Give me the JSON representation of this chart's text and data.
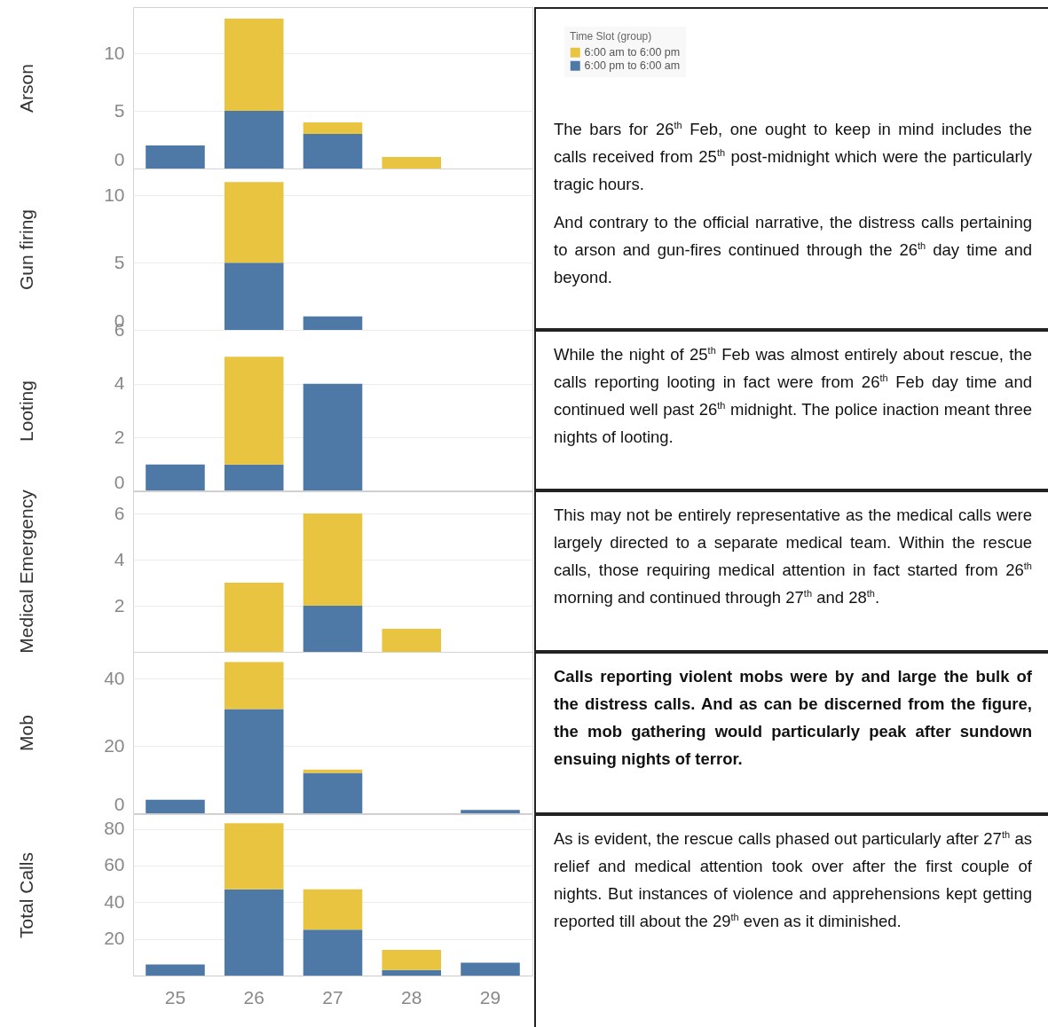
{
  "chart_data": [
    {
      "type": "bar",
      "ylabel": "Arson",
      "categories": [
        "25",
        "26",
        "27",
        "28",
        "29"
      ],
      "stacked": true,
      "ylim": [
        0,
        14
      ],
      "yticks": [
        0,
        5,
        10
      ],
      "grid": "y",
      "tick_labels": "y",
      "legend": "right",
      "legend_title": "Time Slot (group)",
      "series": [
        {
          "name": "6:00 pm to 6:00 am",
          "color": "#4e79a7",
          "values": [
            2,
            5,
            3,
            0,
            0
          ]
        },
        {
          "name": "6:00 am to 6:00 pm",
          "color": "#e8c440",
          "values": [
            0,
            8,
            1,
            1,
            0
          ]
        }
      ],
      "annotations": [
        "The bars for 26$^{th}$ Feb, one ought to keep in mind includes the calls received from 25$^{th}$ post-midnight which were the particularly tragic hours.",
        "And contrary to the official narrative, the distress calls pertaining to arson and gun-fires continued through the 26$^{th}$ day time and beyond."
      ]
    },
    {
      "type": "bar",
      "ylabel": "Gun firing",
      "categories": [
        "25",
        "26",
        "27",
        "28",
        "29"
      ],
      "stacked": true,
      "ylim": [
        0,
        12
      ],
      "yticks": [
        0,
        5,
        10
      ],
      "grid": "y",
      "tick_labels": "y",
      "series": [
        {
          "color": "#4e79a7",
          "values": [
            0,
            5,
            1,
            0,
            0
          ]
        },
        {
          "color": "#e8c440",
          "values": [
            0,
            6,
            0,
            0,
            0
          ]
        }
      ]
    },
    {
      "type": "bar",
      "ylabel": "Looting",
      "categories": [
        "25",
        "26",
        "27",
        "28",
        "29"
      ],
      "stacked": true,
      "ylim": [
        0,
        6
      ],
      "yticks": [
        0,
        2,
        4,
        6
      ],
      "grid": "y",
      "tick_labels": "y",
      "series": [
        {
          "color": "#4e79a7",
          "values": [
            1,
            1,
            4,
            0,
            0
          ]
        },
        {
          "color": "#e8c440",
          "values": [
            0,
            4,
            0,
            0,
            0
          ]
        }
      ],
      "annotations": [
        "While the night of 25$^{th}$ Feb was almost entirely about rescue, the calls reporting looting in fact were from 26$^{th}$ Feb day time and continued well past 26$^{th}$ midnight. The police inaction meant three nights of looting."
      ]
    },
    {
      "type": "bar",
      "ylabel": "Medical Emergency",
      "categories": [
        "25",
        "26",
        "27",
        "28",
        "29"
      ],
      "stacked": true,
      "ylim": [
        0,
        7
      ],
      "yticks": [
        2,
        4,
        6
      ],
      "grid": "y",
      "tick_labels": "y",
      "series": [
        {
          "color": "#4e79a7",
          "values": [
            0,
            0,
            2,
            0,
            0
          ]
        },
        {
          "color": "#e8c440",
          "values": [
            0,
            3,
            4,
            1,
            0
          ]
        }
      ],
      "annotations": [
        "This may not be entirely representative as the medical calls were largely directed to a separate medical team. Within the rescue calls, those requiring medical attention in fact started from 26$^{th}$ morning and continued through 27$^{th}$ and 28$^{th}$."
      ]
    },
    {
      "type": "bar",
      "ylabel": "Mob",
      "categories": [
        "25",
        "26",
        "27",
        "28",
        "29"
      ],
      "stacked": true,
      "ylim": [
        0,
        48
      ],
      "yticks": [
        0,
        20,
        40
      ],
      "grid": "y",
      "tick_labels": "y",
      "series": [
        {
          "color": "#4e79a7",
          "values": [
            4,
            31,
            12,
            0,
            1
          ]
        },
        {
          "color": "#e8c440",
          "values": [
            0,
            14,
            1,
            0,
            0
          ]
        }
      ],
      "annotations": [
        "Calls reporting violent mobs were by and large the bulk of the distress calls. And as can be discerned from the figure, the mob gathering would particularly peak after sundown ensuing nights of terror."
      ]
    },
    {
      "type": "bar",
      "ylabel": "Total Calls",
      "categories": [
        "25",
        "26",
        "27",
        "28",
        "29"
      ],
      "stacked": true,
      "ylim": [
        0,
        88
      ],
      "yticks": [
        20,
        40,
        60,
        80
      ],
      "grid": "y",
      "series": [
        {
          "color": "#4e79a7",
          "values": [
            6,
            47,
            25,
            3,
            7
          ]
        },
        {
          "color": "#e8c440",
          "values": [
            0,
            36,
            22,
            11,
            0
          ]
        }
      ],
      "annotations": [
        "As is evident, the rescue calls phased out particularly after 27$^{th}$ as relief and medical attention took over after the first couple of nights. But instances of violence and apprehensions kept getting reported till about the 29$^{th}$ even as it diminished."
      ]
    }
  ]
}
